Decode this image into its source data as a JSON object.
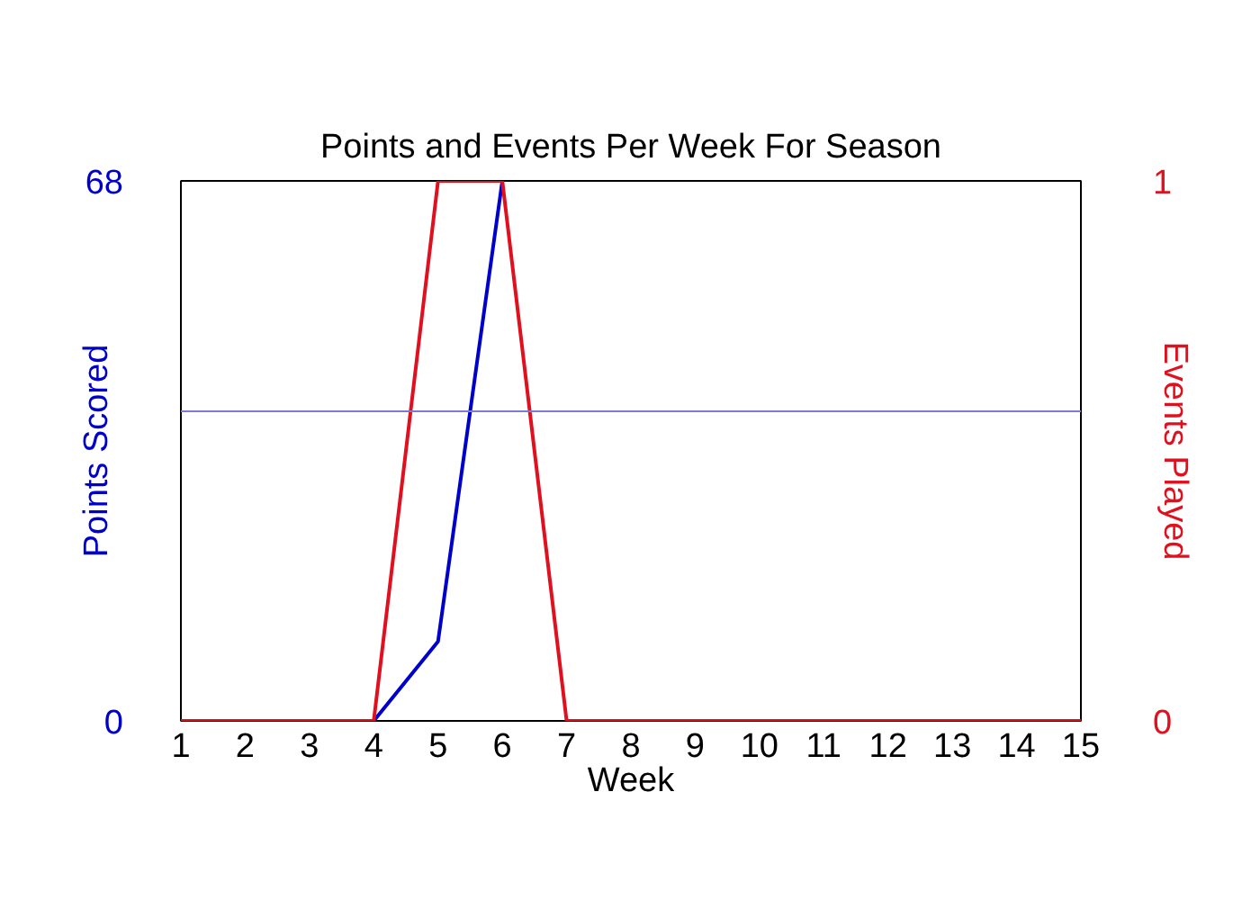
{
  "chart_data": {
    "type": "line",
    "title": "Points and Events Per Week For Season",
    "xlabel": "Week",
    "ylabel": "Points Scored",
    "y2label": "Events Played",
    "x": [
      1,
      2,
      3,
      4,
      5,
      6,
      7,
      8,
      9,
      10,
      11,
      12,
      13,
      14,
      15
    ],
    "xlim": [
      1,
      15
    ],
    "xticks": [
      1,
      2,
      3,
      4,
      5,
      6,
      7,
      8,
      9,
      10,
      11,
      12,
      13,
      14,
      15
    ],
    "ylim": [
      0,
      68
    ],
    "yticks": [
      0,
      68
    ],
    "y2lim": [
      0,
      1
    ],
    "y2ticks": [
      0,
      1
    ],
    "series": [
      {
        "color": "#0000cc",
        "values": [
          null,
          null,
          null,
          0,
          10,
          68,
          null,
          null,
          null,
          null,
          null,
          null,
          null,
          null,
          null
        ]
      },
      {
        "color": "#e0101e",
        "axis": "y2",
        "values": [
          0,
          0,
          0,
          0,
          1,
          1,
          0,
          0,
          0,
          0,
          0,
          0,
          0,
          0,
          0
        ]
      }
    ],
    "ref_lines": [
      {
        "axis": "y",
        "value": 39,
        "color": "#7b7bd6"
      }
    ],
    "line_style": "solid"
  }
}
